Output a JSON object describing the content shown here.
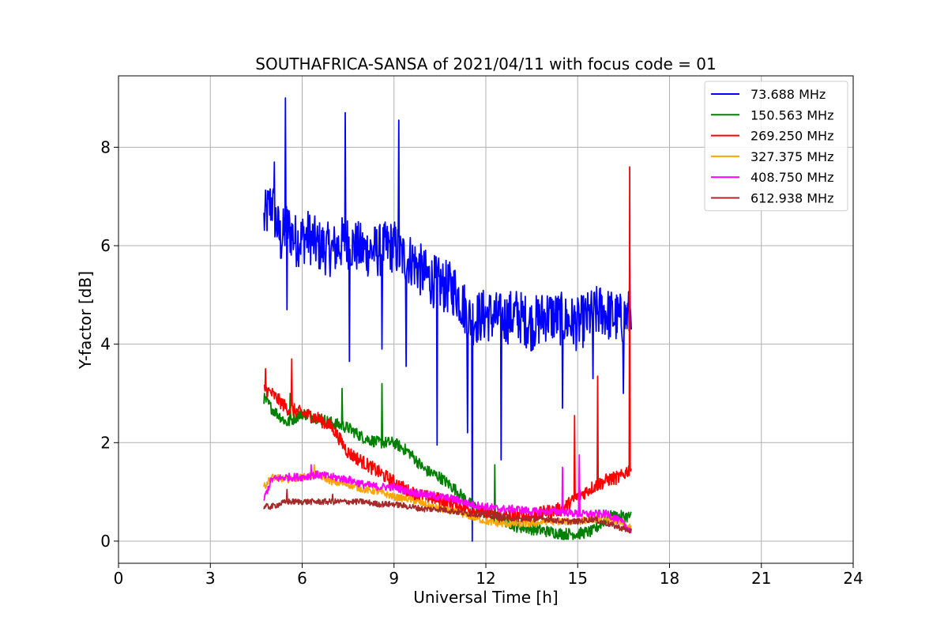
{
  "chart_data": {
    "type": "line",
    "title": "SOUTHAFRICA-SANSA of 2021/04/11 with focus code = 01",
    "xlabel": "Universal Time [h]",
    "ylabel": "Y-factor [dB]",
    "xlim": [
      0,
      24
    ],
    "ylim": [
      -0.45,
      9.45
    ],
    "xticks": [
      0,
      3,
      6,
      9,
      12,
      15,
      18,
      21,
      24
    ],
    "yticks": [
      0,
      2,
      4,
      6,
      8
    ],
    "grid": true,
    "legend_position": "top-right",
    "series": [
      {
        "name": "  73.688 MHz",
        "color": "#0000ff",
        "x": [
          4.75,
          5.0,
          5.3,
          5.5,
          5.8,
          6.2,
          6.5,
          7.0,
          7.4,
          7.7,
          8.0,
          8.5,
          9.0,
          9.2,
          9.6,
          10.0,
          10.5,
          11.0,
          11.5,
          12.0,
          12.5,
          13.0,
          13.5,
          14.0,
          14.5,
          15.0,
          15.5,
          15.8,
          16.0,
          16.4,
          16.75
        ],
        "y": [
          6.5,
          6.9,
          6.1,
          6.4,
          6.1,
          6.2,
          6.0,
          5.9,
          6.1,
          6.0,
          5.9,
          5.9,
          6.0,
          5.8,
          5.7,
          5.4,
          5.2,
          5.1,
          4.5,
          4.6,
          4.5,
          4.6,
          4.4,
          4.6,
          4.5,
          4.4,
          4.6,
          4.7,
          4.6,
          4.5,
          4.6
        ],
        "spikes": [
          {
            "x": 5.45,
            "y": 9.0
          },
          {
            "x": 7.4,
            "y": 8.7
          },
          {
            "x": 9.15,
            "y": 8.55
          },
          {
            "x": 5.1,
            "y": 7.7
          },
          {
            "x": 16.7,
            "y": 5.8
          },
          {
            "x": 5.5,
            "y": 4.7
          },
          {
            "x": 7.55,
            "y": 3.65
          },
          {
            "x": 8.6,
            "y": 3.9
          },
          {
            "x": 9.4,
            "y": 3.55
          },
          {
            "x": 10.4,
            "y": 1.95
          },
          {
            "x": 11.4,
            "y": 2.2
          },
          {
            "x": 11.55,
            "y": 0.0
          },
          {
            "x": 12.5,
            "y": 1.65
          },
          {
            "x": 14.5,
            "y": 2.7
          },
          {
            "x": 15.5,
            "y": 3.3
          },
          {
            "x": 16.5,
            "y": 3.0
          }
        ]
      },
      {
        "name": "150.563 MHz",
        "color": "#008000",
        "x": [
          4.75,
          5.0,
          5.5,
          6.0,
          6.5,
          7.0,
          7.5,
          8.0,
          8.5,
          9.0,
          9.5,
          10.0,
          10.5,
          11.0,
          11.5,
          12.0,
          12.5,
          13.0,
          13.5,
          14.0,
          14.5,
          15.0,
          15.5,
          16.0,
          16.5,
          16.75
        ],
        "y": [
          2.9,
          2.7,
          2.4,
          2.6,
          2.5,
          2.4,
          2.3,
          2.1,
          2.0,
          2.0,
          1.8,
          1.45,
          1.3,
          1.05,
          0.75,
          0.55,
          0.45,
          0.3,
          0.25,
          0.2,
          0.15,
          0.15,
          0.2,
          0.5,
          0.5,
          0.5
        ],
        "spikes": [
          {
            "x": 5.6,
            "y": 3.0
          },
          {
            "x": 7.3,
            "y": 3.1
          },
          {
            "x": 8.6,
            "y": 3.2
          },
          {
            "x": 12.3,
            "y": 1.55
          }
        ]
      },
      {
        "name": "269.250 MHz",
        "color": "#ff0000",
        "x": [
          4.75,
          5.0,
          5.5,
          6.0,
          6.5,
          7.0,
          7.5,
          8.0,
          8.5,
          9.0,
          9.5,
          10.0,
          10.5,
          11.0,
          11.5,
          12.0,
          12.5,
          13.0,
          13.5,
          14.0,
          14.5,
          15.0,
          15.5,
          16.0,
          16.4,
          16.75
        ],
        "y": [
          3.1,
          3.0,
          2.7,
          2.6,
          2.5,
          2.3,
          1.8,
          1.6,
          1.4,
          1.2,
          1.0,
          0.9,
          0.85,
          0.75,
          0.65,
          0.55,
          0.5,
          0.5,
          0.5,
          0.6,
          0.65,
          0.9,
          1.1,
          1.25,
          1.3,
          1.5
        ],
        "spikes": [
          {
            "x": 4.8,
            "y": 3.5
          },
          {
            "x": 5.65,
            "y": 3.7
          },
          {
            "x": 14.9,
            "y": 2.55
          },
          {
            "x": 15.65,
            "y": 3.35
          },
          {
            "x": 16.7,
            "y": 7.6
          }
        ]
      },
      {
        "name": "327.375 MHz",
        "color": "#ffa500",
        "x": [
          4.75,
          5.0,
          5.5,
          6.0,
          6.5,
          7.0,
          7.5,
          8.0,
          8.5,
          9.0,
          9.5,
          10.0,
          10.5,
          11.0,
          11.5,
          12.0,
          12.5,
          13.0,
          13.5,
          14.0,
          14.5,
          15.0,
          15.5,
          16.0,
          16.5,
          16.75
        ],
        "y": [
          1.1,
          1.3,
          1.25,
          1.3,
          1.35,
          1.2,
          1.15,
          1.05,
          1.0,
          0.9,
          0.85,
          0.75,
          0.65,
          0.6,
          0.5,
          0.4,
          0.35,
          0.35,
          0.35,
          0.4,
          0.4,
          0.4,
          0.45,
          0.45,
          0.35,
          0.25
        ],
        "spikes": [
          {
            "x": 6.4,
            "y": 1.55
          }
        ]
      },
      {
        "name": "408.750 MHz",
        "color": "#ff00ff",
        "x": [
          4.75,
          5.0,
          5.5,
          6.0,
          6.5,
          7.0,
          7.5,
          8.0,
          8.5,
          9.0,
          9.5,
          10.0,
          10.5,
          11.0,
          11.5,
          12.0,
          12.5,
          13.0,
          13.5,
          14.0,
          14.5,
          15.0,
          15.5,
          16.0,
          16.5,
          16.75
        ],
        "y": [
          0.85,
          1.25,
          1.3,
          1.3,
          1.35,
          1.3,
          1.25,
          1.15,
          1.1,
          1.1,
          1.0,
          0.95,
          0.9,
          0.85,
          0.75,
          0.7,
          0.65,
          0.65,
          0.6,
          0.6,
          0.6,
          0.55,
          0.55,
          0.55,
          0.35,
          0.2
        ],
        "spikes": [
          {
            "x": 6.3,
            "y": 1.55
          },
          {
            "x": 14.5,
            "y": 1.5
          },
          {
            "x": 15.05,
            "y": 1.75
          }
        ]
      },
      {
        "name": "612.938 MHz",
        "color": "#a52a2a",
        "x": [
          4.75,
          5.0,
          5.5,
          6.0,
          6.5,
          7.0,
          7.5,
          8.0,
          8.5,
          9.0,
          9.5,
          10.0,
          10.5,
          11.0,
          11.5,
          12.0,
          12.5,
          13.0,
          13.5,
          14.0,
          14.5,
          15.0,
          15.5,
          16.0,
          16.5,
          16.75
        ],
        "y": [
          0.7,
          0.7,
          0.8,
          0.8,
          0.8,
          0.8,
          0.8,
          0.8,
          0.75,
          0.75,
          0.7,
          0.65,
          0.65,
          0.6,
          0.55,
          0.55,
          0.5,
          0.45,
          0.45,
          0.45,
          0.4,
          0.4,
          0.45,
          0.35,
          0.25,
          0.2
        ],
        "spikes": [
          {
            "x": 5.5,
            "y": 1.05
          },
          {
            "x": 7.0,
            "y": 0.95
          }
        ]
      }
    ]
  }
}
